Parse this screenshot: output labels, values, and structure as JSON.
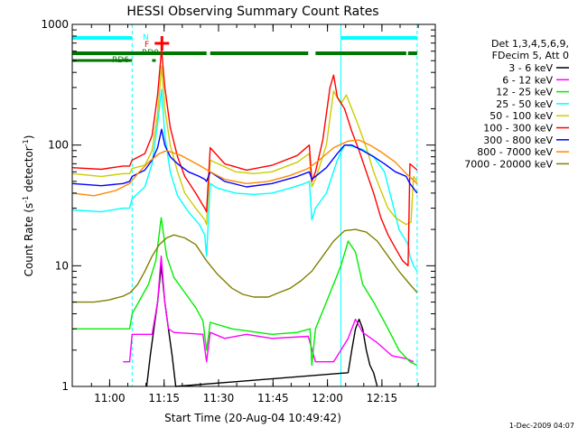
{
  "chart_data": {
    "type": "line",
    "title": "HESSI Observing Summary Count Rates",
    "xlabel": "Start Time (20-Aug-04 10:49:42)",
    "ylabel_main": "Count Rate (s",
    "ylabel_sup1": "-1",
    "ylabel_mid": " detector",
    "ylabel_sup2": "-1",
    "ylabel_end": ")",
    "y_scale": "log",
    "ylim": [
      1,
      1000
    ],
    "x_units": "minutes after 10:49:42",
    "xlim": [
      0,
      100
    ],
    "x_ticks": [
      {
        "t": 10.3,
        "label": "11:00"
      },
      {
        "t": 25.3,
        "label": "11:15"
      },
      {
        "t": 40.3,
        "label": "11:30"
      },
      {
        "t": 55.3,
        "label": "11:45"
      },
      {
        "t": 70.3,
        "label": "12:00"
      },
      {
        "t": 85.3,
        "label": "12:15"
      }
    ],
    "y_ticks": [
      {
        "v": 1,
        "label": "1"
      },
      {
        "v": 10,
        "label": "10"
      },
      {
        "v": 100,
        "label": "100"
      },
      {
        "v": 1000,
        "label": "1000"
      }
    ],
    "legend_header": [
      "Det 1,3,4,5,6,9,",
      "FDecim 5, Att 0"
    ],
    "legend_position": "right",
    "footer_timestamp": "1-Dec-2009 04:07",
    "flag_labels": {
      "n": "N",
      "f": "F",
      "rd0": "RD0",
      "rd6": "RD6"
    },
    "flags": {
      "night": [
        [
          0,
          16.5
        ],
        [
          74,
          95
        ]
      ],
      "rd0": [
        [
          0,
          37
        ],
        [
          38,
          65
        ],
        [
          67,
          92
        ],
        [
          92.5,
          95
        ]
      ],
      "rd6": [
        [
          0,
          16.5
        ],
        [
          22,
          23
        ]
      ],
      "flare_marker": 24.7
    },
    "vertical_dashed": [
      16.5,
      95
    ],
    "vertical_solid": [
      74
    ],
    "series": [
      {
        "name": "3 - 6 keV",
        "color": "#000000",
        "points": [
          [
            20.5,
            1
          ],
          [
            21.5,
            1.8
          ],
          [
            22.5,
            3
          ],
          [
            23.5,
            5
          ],
          [
            24.5,
            10
          ],
          [
            25.5,
            5
          ],
          [
            26.5,
            3
          ],
          [
            27.5,
            1.8
          ],
          [
            28.5,
            1
          ],
          [
            76,
            1.3
          ],
          [
            77,
            2
          ],
          [
            78,
            3
          ],
          [
            79,
            3.6
          ],
          [
            80,
            3
          ],
          [
            81,
            2
          ],
          [
            82,
            1.5
          ],
          [
            83,
            1.3
          ],
          [
            84,
            1
          ]
        ]
      },
      {
        "name": "6 - 12 keV",
        "color": "#ff00ff",
        "points": [
          [
            14,
            1.6
          ],
          [
            15.8,
            1.6
          ],
          [
            16.5,
            2.7
          ],
          [
            22,
            2.7
          ],
          [
            23.5,
            5
          ],
          [
            24.5,
            12
          ],
          [
            25.5,
            5
          ],
          [
            26.5,
            3
          ],
          [
            28,
            2.8
          ],
          [
            36,
            2.7
          ],
          [
            37,
            1.6
          ],
          [
            38,
            2.8
          ],
          [
            42,
            2.5
          ],
          [
            48,
            2.7
          ],
          [
            55,
            2.5
          ],
          [
            65,
            2.6
          ],
          [
            67,
            1.6
          ],
          [
            72,
            1.6
          ],
          [
            74,
            2
          ],
          [
            76,
            2.5
          ],
          [
            78,
            3.6
          ],
          [
            80,
            2.8
          ],
          [
            84,
            2.3
          ],
          [
            88,
            1.8
          ],
          [
            92,
            1.7
          ],
          [
            94,
            1.6
          ]
        ]
      },
      {
        "name": "12 - 25 keV",
        "color": "#00ee00",
        "points": [
          [
            0,
            3
          ],
          [
            15.8,
            3
          ],
          [
            16.5,
            4
          ],
          [
            21,
            7
          ],
          [
            23,
            11
          ],
          [
            24.5,
            25
          ],
          [
            26,
            12
          ],
          [
            28,
            8
          ],
          [
            31,
            6
          ],
          [
            34,
            4.5
          ],
          [
            36,
            3.5
          ],
          [
            37,
            2
          ],
          [
            38,
            3.4
          ],
          [
            44,
            3
          ],
          [
            55,
            2.7
          ],
          [
            62,
            2.8
          ],
          [
            65.5,
            3
          ],
          [
            66,
            1.5
          ],
          [
            67,
            3
          ],
          [
            70,
            5
          ],
          [
            74,
            10
          ],
          [
            76,
            16
          ],
          [
            78,
            13
          ],
          [
            80,
            7
          ],
          [
            83,
            5
          ],
          [
            87,
            3
          ],
          [
            90,
            2
          ],
          [
            93,
            1.6
          ],
          [
            95,
            1.5
          ]
        ]
      },
      {
        "name": "25 - 50 keV",
        "color": "#00ffff",
        "points": [
          [
            0,
            29
          ],
          [
            8,
            28
          ],
          [
            14,
            30
          ],
          [
            15.8,
            30
          ],
          [
            16.5,
            36
          ],
          [
            20,
            45
          ],
          [
            22,
            70
          ],
          [
            23.5,
            150
          ],
          [
            24.6,
            290
          ],
          [
            25.5,
            120
          ],
          [
            27,
            60
          ],
          [
            29,
            38
          ],
          [
            32,
            28
          ],
          [
            35,
            22
          ],
          [
            36.5,
            18
          ],
          [
            37,
            12
          ],
          [
            38,
            48
          ],
          [
            40,
            44
          ],
          [
            45,
            40
          ],
          [
            50,
            39
          ],
          [
            55,
            40
          ],
          [
            60,
            44
          ],
          [
            64,
            48
          ],
          [
            65.3,
            50
          ],
          [
            66,
            24
          ],
          [
            67,
            30
          ],
          [
            70,
            40
          ],
          [
            73,
            75
          ],
          [
            75,
            100
          ],
          [
            77,
            98
          ],
          [
            80,
            92
          ],
          [
            83,
            80
          ],
          [
            86,
            60
          ],
          [
            88,
            35
          ],
          [
            90,
            20
          ],
          [
            92.5,
            15
          ],
          [
            93,
            12
          ],
          [
            94,
            10
          ],
          [
            95,
            9
          ]
        ]
      },
      {
        "name": "50 - 100 keV",
        "color": "#cccc00",
        "points": [
          [
            0,
            58
          ],
          [
            8,
            55
          ],
          [
            14,
            58
          ],
          [
            15.8,
            58
          ],
          [
            16.5,
            64
          ],
          [
            20,
            68
          ],
          [
            22,
            90
          ],
          [
            23.5,
            180
          ],
          [
            24.6,
            450
          ],
          [
            25.5,
            200
          ],
          [
            27,
            100
          ],
          [
            29,
            60
          ],
          [
            31,
            40
          ],
          [
            34,
            30
          ],
          [
            36.5,
            24
          ],
          [
            37,
            22
          ],
          [
            38,
            75
          ],
          [
            45,
            60
          ],
          [
            50,
            58
          ],
          [
            55,
            60
          ],
          [
            62,
            72
          ],
          [
            65.3,
            85
          ],
          [
            66,
            45
          ],
          [
            67,
            52
          ],
          [
            70,
            100
          ],
          [
            72,
            280
          ],
          [
            74,
            220
          ],
          [
            75.5,
            260
          ],
          [
            77,
            200
          ],
          [
            79,
            140
          ],
          [
            81,
            95
          ],
          [
            83,
            60
          ],
          [
            85,
            42
          ],
          [
            87,
            30
          ],
          [
            89,
            25
          ],
          [
            92,
            22
          ],
          [
            93.3,
            23
          ],
          [
            94,
            55
          ],
          [
            95,
            50
          ]
        ]
      },
      {
        "name": "100 - 300 keV",
        "color": "#ff0000",
        "points": [
          [
            0,
            65
          ],
          [
            8,
            63
          ],
          [
            14,
            67
          ],
          [
            15.8,
            67
          ],
          [
            16.5,
            75
          ],
          [
            20,
            85
          ],
          [
            22,
            120
          ],
          [
            23.5,
            260
          ],
          [
            24.6,
            620
          ],
          [
            25.5,
            300
          ],
          [
            27,
            140
          ],
          [
            29,
            80
          ],
          [
            31,
            55
          ],
          [
            34,
            40
          ],
          [
            36.5,
            30
          ],
          [
            37,
            28
          ],
          [
            38,
            95
          ],
          [
            42,
            70
          ],
          [
            48,
            62
          ],
          [
            55,
            68
          ],
          [
            62,
            82
          ],
          [
            65.3,
            100
          ],
          [
            66,
            50
          ],
          [
            67,
            60
          ],
          [
            69,
            110
          ],
          [
            71,
            300
          ],
          [
            72,
            380
          ],
          [
            73,
            250
          ],
          [
            75,
            200
          ],
          [
            77,
            130
          ],
          [
            79,
            90
          ],
          [
            81,
            60
          ],
          [
            83,
            40
          ],
          [
            85,
            25
          ],
          [
            87,
            18
          ],
          [
            89,
            14
          ],
          [
            91,
            11
          ],
          [
            92.5,
            10
          ],
          [
            93,
            70
          ],
          [
            95,
            62
          ]
        ]
      },
      {
        "name": "300 - 800 keV",
        "color": "#0000ff",
        "points": [
          [
            0,
            48
          ],
          [
            8,
            46
          ],
          [
            14,
            48
          ],
          [
            15.8,
            50
          ],
          [
            16.5,
            55
          ],
          [
            20,
            62
          ],
          [
            22,
            75
          ],
          [
            23.5,
            95
          ],
          [
            24.6,
            135
          ],
          [
            25.5,
            100
          ],
          [
            27,
            80
          ],
          [
            29,
            70
          ],
          [
            32,
            60
          ],
          [
            35,
            55
          ],
          [
            36.5,
            52
          ],
          [
            37,
            50
          ],
          [
            38,
            60
          ],
          [
            42,
            50
          ],
          [
            48,
            45
          ],
          [
            55,
            48
          ],
          [
            62,
            55
          ],
          [
            65.3,
            60
          ],
          [
            66,
            52
          ],
          [
            70,
            65
          ],
          [
            73,
            85
          ],
          [
            75,
            100
          ],
          [
            77,
            100
          ],
          [
            80,
            90
          ],
          [
            83,
            80
          ],
          [
            86,
            70
          ],
          [
            89,
            60
          ],
          [
            92,
            55
          ],
          [
            93,
            48
          ],
          [
            95,
            40
          ]
        ]
      },
      {
        "name": "800 - 7000 keV",
        "color": "#ff8800",
        "points": [
          [
            0,
            40
          ],
          [
            6,
            38
          ],
          [
            12,
            42
          ],
          [
            15.8,
            48
          ],
          [
            18,
            58
          ],
          [
            21,
            72
          ],
          [
            24,
            85
          ],
          [
            26,
            90
          ],
          [
            30,
            82
          ],
          [
            35,
            68
          ],
          [
            38,
            60
          ],
          [
            42,
            52
          ],
          [
            48,
            48
          ],
          [
            54,
            50
          ],
          [
            60,
            56
          ],
          [
            65,
            64
          ],
          [
            68,
            75
          ],
          [
            72,
            95
          ],
          [
            76,
            108
          ],
          [
            79,
            110
          ],
          [
            82,
            100
          ],
          [
            85,
            88
          ],
          [
            89,
            72
          ],
          [
            92,
            58
          ],
          [
            95,
            48
          ]
        ]
      },
      {
        "name": "7000 - 20000 keV",
        "color": "#808000",
        "points": [
          [
            0,
            5
          ],
          [
            6,
            5
          ],
          [
            10,
            5.2
          ],
          [
            14,
            5.6
          ],
          [
            16,
            6
          ],
          [
            18,
            7
          ],
          [
            20,
            9
          ],
          [
            22,
            12
          ],
          [
            24,
            15
          ],
          [
            26,
            17
          ],
          [
            28,
            18
          ],
          [
            31,
            17
          ],
          [
            34,
            15
          ],
          [
            37,
            11
          ],
          [
            40,
            8.5
          ],
          [
            44,
            6.5
          ],
          [
            47,
            5.8
          ],
          [
            50,
            5.5
          ],
          [
            54,
            5.5
          ],
          [
            57,
            6
          ],
          [
            60,
            6.5
          ],
          [
            63,
            7.5
          ],
          [
            66,
            9
          ],
          [
            69,
            12
          ],
          [
            72,
            16
          ],
          [
            75,
            19.5
          ],
          [
            78,
            20
          ],
          [
            81,
            19
          ],
          [
            84,
            16
          ],
          [
            87,
            12
          ],
          [
            90,
            9
          ],
          [
            93,
            7
          ],
          [
            95,
            6
          ]
        ]
      }
    ]
  }
}
